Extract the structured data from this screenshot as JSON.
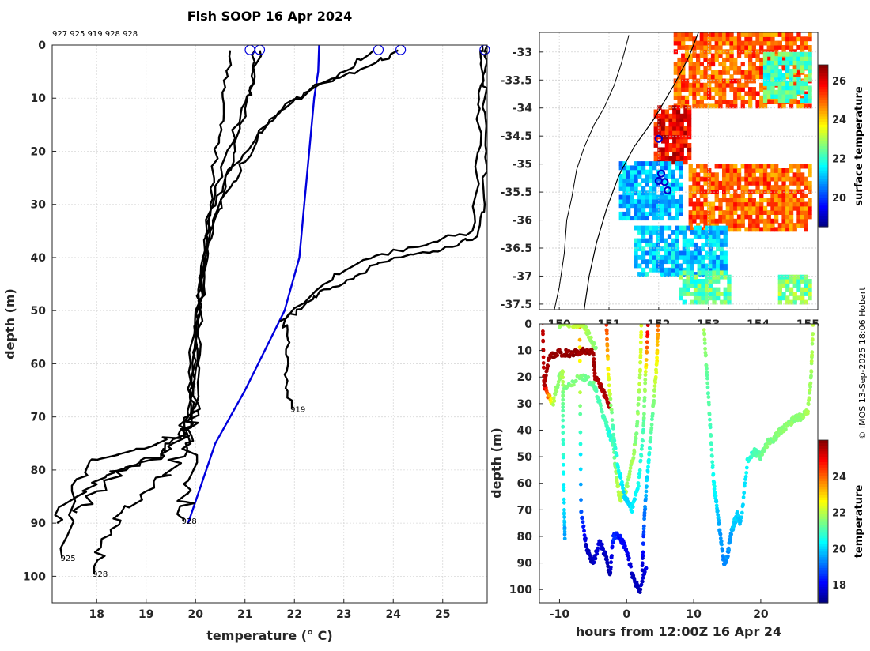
{
  "chart_data": [
    {
      "type": "line",
      "title": "Fish SOOP 16 Apr 2024",
      "xlabel": "temperature (° C)",
      "ylabel": "depth (m)",
      "xlim": [
        17.1,
        25.9
      ],
      "ylim": [
        105,
        0
      ],
      "grid": true,
      "profile_ids_header": "927 925 919 928 928",
      "xticks": [
        "18",
        "19",
        "20",
        "21",
        "22",
        "23",
        "24",
        "25"
      ],
      "yticks": [
        "0",
        "10",
        "20",
        "30",
        "40",
        "50",
        "60",
        "70",
        "80",
        "90",
        "100"
      ],
      "surface_markers": [
        21.1,
        21.3,
        23.7,
        24.15,
        25.85
      ],
      "end_labels": [
        {
          "text": "919",
          "t": 21.95,
          "d": 68.5
        },
        {
          "text": "928",
          "t": 19.75,
          "d": 89.5
        },
        {
          "text": "925",
          "t": 17.3,
          "d": 96.5
        },
        {
          "text": "928",
          "t": 17.95,
          "d": 99.5
        }
      ],
      "series": [
        {
          "name": "climatology",
          "color": "#0000dd",
          "t": [
            22.5,
            22.48,
            22.4,
            22.35,
            22.3,
            22.2,
            22.1,
            21.8,
            21.0,
            20.4,
            19.85
          ],
          "d": [
            0,
            5,
            10,
            15,
            20,
            30,
            40,
            50,
            65,
            75,
            90
          ]
        },
        {
          "name": "warm-925-a",
          "color": "#000000",
          "t": [
            25.9,
            25.85,
            25.85,
            25.88,
            25.85,
            25.7,
            25.2,
            24.6,
            23.7,
            23.2,
            22.6,
            22.2,
            21.8,
            21.9,
            21.8,
            21.95
          ],
          "d": [
            0,
            5,
            10,
            20,
            30,
            36,
            38,
            39,
            41,
            44,
            46,
            49,
            52,
            56,
            62,
            68.5
          ]
        },
        {
          "name": "warm-925-b",
          "color": "#000000",
          "t": [
            25.8,
            25.8,
            25.75,
            25.7,
            25.6,
            24.9,
            24.0,
            23.3,
            22.6,
            21.7
          ],
          "d": [
            0,
            5,
            12,
            25,
            35,
            37,
            38.5,
            41,
            45,
            52
          ]
        },
        {
          "name": "prof-a",
          "color": "#000000",
          "t": [
            24.1,
            23.5,
            22.6,
            21.8,
            21.2,
            20.6,
            20.3,
            20.2,
            20.1,
            20.05,
            20.0,
            19.9,
            19.6,
            18.8,
            17.9,
            17.5,
            17.3
          ],
          "d": [
            1,
            4,
            7,
            12,
            18,
            25,
            32,
            40,
            50,
            60,
            68,
            72,
            74,
            76,
            78,
            84,
            96.5
          ]
        },
        {
          "name": "prof-b",
          "color": "#000000",
          "t": [
            23.6,
            23.0,
            22.2,
            21.5,
            21.0,
            20.6,
            20.3,
            20.1,
            20.0,
            19.95,
            19.9,
            19.5,
            18.8,
            18.2,
            17.6,
            17.2
          ],
          "d": [
            1,
            5,
            9,
            14,
            22,
            28,
            35,
            45,
            55,
            65,
            72,
            76,
            79,
            81,
            85,
            90
          ]
        },
        {
          "name": "prof-c",
          "color": "#000000",
          "t": [
            21.2,
            21.2,
            21.0,
            20.8,
            20.6,
            20.35,
            20.2,
            20.05,
            19.95,
            19.9,
            19.7,
            19.3,
            18.6,
            18.0,
            17.6
          ],
          "d": [
            1,
            6,
            12,
            20,
            26,
            33,
            42,
            52,
            62,
            70,
            74,
            77,
            80,
            84,
            88
          ]
        },
        {
          "name": "prof-d",
          "color": "#000000",
          "t": [
            20.7,
            20.6,
            20.5,
            20.4,
            20.3,
            20.15,
            20.0,
            19.9,
            19.85,
            19.8,
            19.5,
            19.0,
            18.5,
            18.1,
            17.95
          ],
          "d": [
            1,
            8,
            15,
            22,
            30,
            40,
            50,
            60,
            70,
            75,
            80,
            84,
            88,
            93,
            99.5
          ]
        },
        {
          "name": "prof-e",
          "color": "#000000",
          "t": [
            21.3,
            21.1,
            20.9,
            20.6,
            20.4,
            20.2,
            20.1,
            20.0,
            19.95,
            19.9,
            19.85,
            19.8,
            19.75
          ],
          "d": [
            1,
            8,
            14,
            21,
            28,
            36,
            46,
            56,
            66,
            75,
            82,
            86,
            89.5
          ]
        }
      ]
    },
    {
      "type": "heatmap",
      "title": "",
      "xlabel": "",
      "ylabel": "",
      "colorbar_label": "surface temperature",
      "colorbar_range": [
        18.5,
        26.8
      ],
      "colorbar_ticks": [
        "20",
        "22",
        "24",
        "26"
      ],
      "xticks": [
        "150",
        "151",
        "152",
        "153",
        "154",
        "155"
      ],
      "yticks": [
        "-33",
        "-33.5",
        "-34",
        "-34.5",
        "-35",
        "-35.5",
        "-36",
        "-36.5",
        "-37",
        "-37.5"
      ],
      "xlim": [
        149.6,
        155.2
      ],
      "ylim": [
        -37.6,
        -32.65
      ],
      "regions": [
        {
          "lon": [
            152.3,
            155.0
          ],
          "lat": [
            -34.0,
            -32.7
          ],
          "value": 25.0
        },
        {
          "lon": [
            154.1,
            155.0
          ],
          "lat": [
            -33.9,
            -33.0
          ],
          "value": 22.2
        },
        {
          "lon": [
            151.9,
            152.6
          ],
          "lat": [
            -35.0,
            -34.0
          ],
          "value": 25.8
        },
        {
          "lon": [
            152.6,
            155.0
          ],
          "lat": [
            -36.2,
            -35.0
          ],
          "value": 25.0
        },
        {
          "lon": [
            151.2,
            152.4
          ],
          "lat": [
            -36.0,
            -35.0
          ],
          "value": 21.0
        },
        {
          "lon": [
            151.5,
            153.3
          ],
          "lat": [
            -37.0,
            -36.1
          ],
          "value": 21.2
        },
        {
          "lon": [
            152.4,
            153.4
          ],
          "lat": [
            -37.5,
            -36.9
          ],
          "value": 22.4
        },
        {
          "lon": [
            154.4,
            155.0
          ],
          "lat": [
            -37.5,
            -37.0
          ],
          "value": 22.6
        }
      ],
      "stations": [
        {
          "lon": 152.0,
          "lat": -34.55
        },
        {
          "lon": 152.05,
          "lat": -35.17
        },
        {
          "lon": 152.0,
          "lat": -35.3
        },
        {
          "lon": 152.12,
          "lat": -35.32
        },
        {
          "lon": 152.18,
          "lat": -35.47
        }
      ],
      "coastline": {
        "lon": [
          149.9,
          150.0,
          150.1,
          150.15,
          150.25,
          150.35,
          150.5,
          150.7,
          150.9,
          151.1,
          151.25,
          151.4
        ],
        "lat": [
          -37.6,
          -37.2,
          -36.6,
          -36.0,
          -35.6,
          -35.1,
          -34.7,
          -34.3,
          -34.0,
          -33.6,
          -33.2,
          -32.7
        ]
      },
      "shelf_edge": {
        "lon": [
          150.5,
          150.6,
          150.75,
          150.95,
          151.2,
          151.5,
          151.9,
          152.3,
          152.6,
          152.8
        ],
        "lat": [
          -37.6,
          -37.0,
          -36.4,
          -35.8,
          -35.2,
          -34.7,
          -34.2,
          -33.6,
          -33.1,
          -32.65
        ]
      }
    },
    {
      "type": "scatter",
      "title": "",
      "xlabel": "hours from 12:00Z 16 Apr 24",
      "ylabel": "depth (m)",
      "xlim": [
        -13,
        28.5
      ],
      "ylim": [
        105,
        0
      ],
      "colorbar_label": "temperature",
      "colorbar_range": [
        17,
        26
      ],
      "colorbar_ticks": [
        "18",
        "20",
        "22",
        "24"
      ],
      "xticks": [
        "-10",
        "0",
        "10",
        "20"
      ],
      "yticks": [
        "0",
        "10",
        "20",
        "30",
        "40",
        "50",
        "60",
        "70",
        "80",
        "90",
        "100"
      ],
      "tracks": [
        {
          "name": "dive-1",
          "h": [
            -12.5,
            -12.3,
            -11.0,
            -10.0,
            -9.5,
            -9.5,
            -9.3,
            -9.2
          ],
          "d": [
            0,
            24,
            30,
            20,
            18,
            40,
            70,
            81
          ],
          "temp": [
            25.5,
            25.5,
            22.0,
            21.5,
            22.0,
            21.0,
            20.0,
            19.5
          ]
        },
        {
          "name": "dive-2",
          "h": [
            -12.3,
            -11.5,
            -10.0,
            -8.5,
            -6.5,
            -5.0,
            -4.7,
            -3.5,
            -2.5
          ],
          "d": [
            24,
            12,
            11,
            11,
            10,
            10,
            20,
            25,
            32
          ],
          "temp": [
            25.5,
            25.8,
            25.8,
            25.8,
            25.8,
            25.8,
            25.6,
            25.6,
            25.6
          ]
        },
        {
          "name": "dive-3",
          "h": [
            -7.0,
            -6.8,
            -6.0,
            -5.0,
            -4.0,
            -3.0,
            -2.5,
            -2.0,
            -1.0,
            0.0,
            1.0,
            2.0,
            3.0
          ],
          "d": [
            0,
            70,
            84,
            90,
            82,
            88,
            95,
            80,
            80,
            85,
            96,
            100,
            90
          ],
          "temp": [
            23.5,
            19.0,
            17.5,
            17.5,
            17.8,
            17.5,
            17.3,
            18.5,
            18.2,
            18.0,
            17.5,
            17.5,
            18.0
          ]
        },
        {
          "name": "dive-4",
          "h": [
            -9.5,
            -7.0,
            -5.0,
            -4.0,
            -3.0,
            -2.5,
            -2.0,
            -1.5,
            -1.0,
            0.0,
            1.0,
            1.5,
            2.0,
            2.2
          ],
          "d": [
            25,
            20,
            22,
            30,
            38,
            42,
            45,
            58,
            66,
            62,
            50,
            40,
            20,
            0
          ],
          "temp": [
            21.5,
            21.5,
            21.3,
            21.0,
            21.0,
            20.6,
            21.0,
            21.8,
            22.0,
            21.8,
            21.8,
            21.5,
            22.0,
            22.5
          ]
        },
        {
          "name": "dive-5",
          "h": [
            -3.0,
            -2.7,
            -2.0,
            -1.2,
            -0.3,
            0.8,
            1.8,
            2.5,
            2.8,
            3.2
          ],
          "d": [
            0,
            20,
            40,
            55,
            65,
            70,
            60,
            40,
            20,
            0
          ],
          "temp": [
            24.5,
            22.5,
            21.0,
            20.5,
            20.0,
            20.2,
            20.5,
            21.0,
            22.0,
            25.5
          ]
        },
        {
          "name": "dive-6",
          "h": [
            4.7,
            4.5,
            4.0,
            3.5,
            3.0,
            2.6,
            2.3
          ],
          "d": [
            0,
            15,
            30,
            45,
            60,
            75,
            95
          ],
          "temp": [
            24.0,
            22.5,
            21.5,
            21.0,
            20.0,
            19.0,
            17.5
          ]
        },
        {
          "name": "dive-7",
          "h": [
            11.5,
            12.0,
            12.5,
            13.0,
            13.5,
            14.0,
            14.5,
            15.0,
            15.5,
            16.0,
            16.5,
            17.0
          ],
          "d": [
            0,
            20,
            40,
            60,
            70,
            80,
            90,
            88,
            80,
            75,
            72,
            75
          ],
          "temp": [
            21.8,
            21.3,
            21.0,
            20.5,
            20.0,
            19.5,
            19.3,
            19.4,
            19.5,
            20.0,
            20.0,
            19.8
          ]
        },
        {
          "name": "dive-8",
          "h": [
            17.0,
            18.0,
            19.0,
            20.0,
            21.0,
            22.0,
            23.0,
            24.0,
            25.0,
            26.0,
            27.0,
            27.5,
            27.8
          ],
          "d": [
            75,
            52,
            48,
            50,
            45,
            43,
            40,
            38,
            36,
            35,
            33,
            20,
            0
          ],
          "temp": [
            19.8,
            20.5,
            21.0,
            21.3,
            21.5,
            21.5,
            21.6,
            21.6,
            21.6,
            21.7,
            21.8,
            21.8,
            22.0
          ]
        },
        {
          "name": "dive-9",
          "h": [
            -10.0,
            -8.0,
            -6.5,
            -5.5,
            -4.5
          ],
          "d": [
            0,
            0,
            0,
            5,
            10
          ],
          "temp": [
            21.8,
            22.2,
            22.0,
            21.8,
            21.5
          ]
        }
      ]
    }
  ],
  "attribution": "© IMOS 13-Sep-2025 18:06 Hobart"
}
